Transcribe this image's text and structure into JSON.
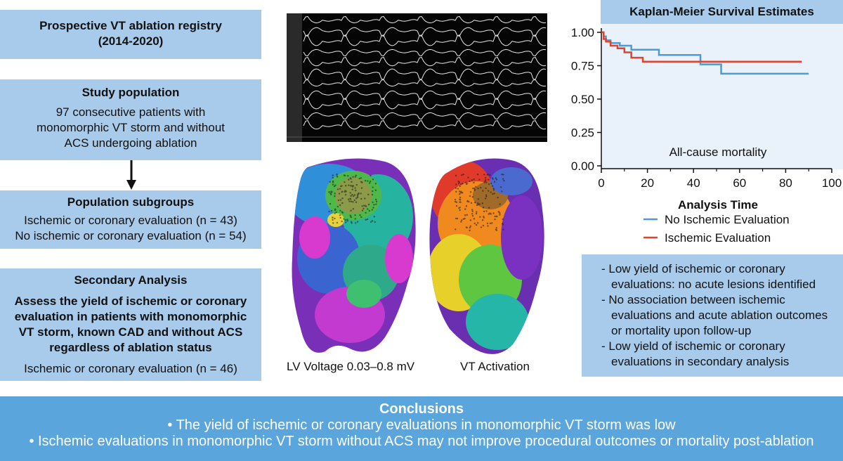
{
  "registry": {
    "title": "Prospective VT ablation registry",
    "years": "(2014-2020)"
  },
  "population": {
    "title": "Study population",
    "text": "97 consecutive patients with monomorphic VT storm and without ACS undergoing ablation"
  },
  "subgroups": {
    "title": "Population subgroups",
    "items": [
      "Ischemic or coronary evaluation (n = 43)",
      "No ischemic or coronary evaluation (n = 54)"
    ]
  },
  "secondary": {
    "title": "Secondary Analysis",
    "description": "Assess the yield of ischemic or coronary evaluation in patients with monomorphic VT storm, known CAD and without ACS regardless of ablation status",
    "n": "Ischemic or coronary evaluation (n = 46)"
  },
  "images": {
    "voltage_caption": "LV Voltage 0.03–0.8 mV",
    "activation_caption": "VT Activation"
  },
  "colors": {
    "box": "#a9cbeb",
    "footer": "#5aa5db",
    "no_ischemic": "#4a9bd6",
    "ischemic": "#e1432f",
    "plot_bg": "#e9f1fa"
  },
  "chart_data": {
    "type": "line",
    "title": "Kaplan-Meier Survival Estimates",
    "annotation": "All-cause mortality",
    "xlabel": "Analysis Time",
    "ylabel": "",
    "xlim": [
      0,
      100
    ],
    "ylim": [
      0,
      1
    ],
    "xticks": [
      "0",
      "20",
      "40",
      "60",
      "80",
      "100"
    ],
    "yticks": [
      "0.00",
      "0.25",
      "0.50",
      "0.75",
      "1.00"
    ],
    "legend": "bottom",
    "series": [
      {
        "name": "No Ischemic Evaluation",
        "color": "#4a9bd6",
        "x": [
          0,
          1,
          2,
          4,
          8,
          13,
          25,
          43,
          52,
          90
        ],
        "y": [
          1.0,
          0.97,
          0.94,
          0.92,
          0.9,
          0.87,
          0.83,
          0.76,
          0.69,
          0.69
        ]
      },
      {
        "name": "Ischemic Evaluation",
        "color": "#e1432f",
        "x": [
          0,
          1,
          2,
          4,
          7,
          10,
          13,
          18,
          87
        ],
        "y": [
          1.0,
          0.95,
          0.93,
          0.9,
          0.88,
          0.85,
          0.81,
          0.78,
          0.78
        ]
      }
    ]
  },
  "findings": [
    "Low yield of ischemic or coronary evaluations: no acute lesions identified",
    "No association between ischemic evaluations and acute ablation outcomes or mortality upon follow-up",
    "Low yield of ischemic or coronary evaluations in secondary analysis"
  ],
  "conclusions": {
    "title": "Conclusions",
    "items": [
      "• The yield of ischemic or coronary evaluations in monomorphic VT storm was low",
      "• Ischemic evaluations in monomorphic VT storm without ACS may not improve procedural outcomes or mortality post-ablation"
    ]
  }
}
